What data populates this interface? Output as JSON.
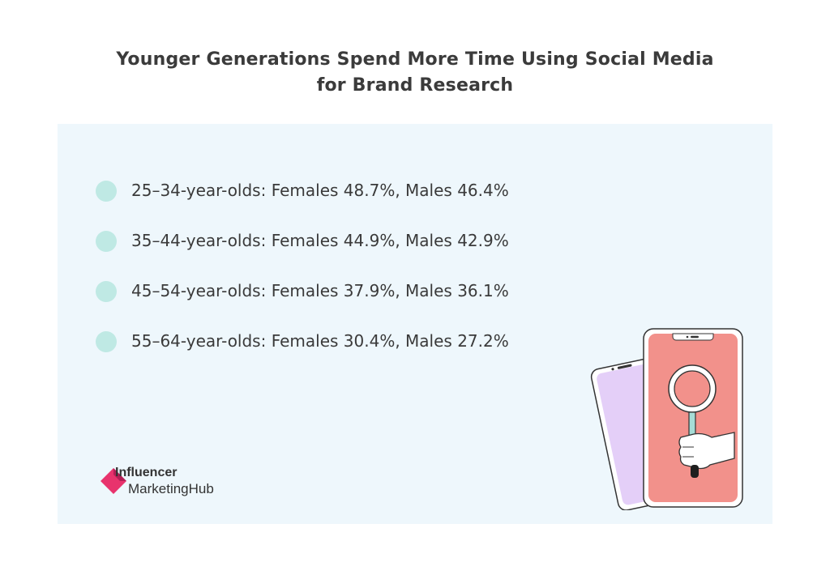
{
  "title": {
    "line1": "Younger Generations Spend More Time Using Social Media",
    "line2": "for Brand Research"
  },
  "items": [
    {
      "text": "25–34-year-olds: Females 48.7%, Males 46.4%"
    },
    {
      "text": "35–44-year-olds: Females 44.9%, Males 42.9%"
    },
    {
      "text": "45–54-year-olds: Females 37.9%, Males 36.1%"
    },
    {
      "text": "55–64-year-olds: Females 30.4%, Males 27.2%"
    }
  ],
  "logo": {
    "line1": "Influencer",
    "line2": "MarketingHub",
    "icon": "influencer-marketinghub-logo-mark"
  },
  "illustration": {
    "icon": "phones-magnifier-illustration"
  },
  "colors": {
    "panel_bg": "#eef7fc",
    "bullet": "#bfe9e4",
    "phone_front": "#f2918b",
    "phone_back": "#e4cff8",
    "logo_accent": "#e8336d"
  }
}
